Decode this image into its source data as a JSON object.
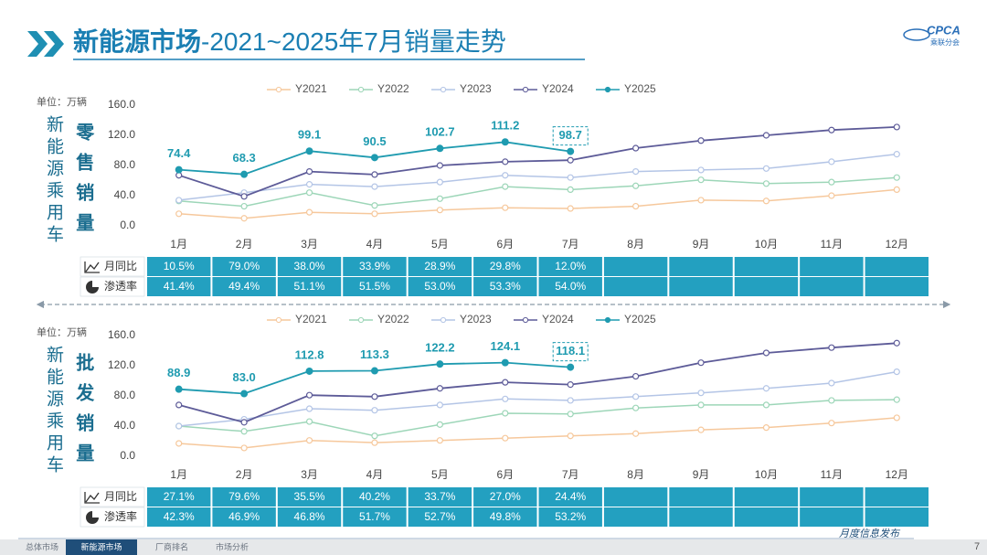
{
  "header": {
    "title_main": "新能源市场",
    "title_rest": "-2021~2025年7月销量走势",
    "logo": "CPCA",
    "logo_sub": "乘联分会"
  },
  "chart_data": [
    {
      "type": "line",
      "unit": "单位：万辆",
      "side_label": "新能源乘用车",
      "metric_label": "零售销量",
      "categories": [
        "1月",
        "2月",
        "3月",
        "4月",
        "5月",
        "6月",
        "7月",
        "8月",
        "9月",
        "10月",
        "11月",
        "12月"
      ],
      "ylim": [
        0,
        160
      ],
      "yticks": [
        {
          "value": 0,
          "label": "0.0"
        },
        {
          "value": 40,
          "label": "40.0"
        },
        {
          "value": 80,
          "label": "80.0"
        },
        {
          "value": 120,
          "label": "120.0"
        },
        {
          "value": 160,
          "label": "160.0"
        }
      ],
      "grid": false,
      "series": [
        {
          "name": "Y2021",
          "color": "#f6c89c",
          "values": [
            16,
            10,
            18,
            16,
            21,
            24,
            23,
            26,
            34,
            33,
            40,
            48
          ]
        },
        {
          "name": "Y2022",
          "color": "#9dd6b8",
          "values": [
            33,
            26,
            44,
            27,
            36,
            52,
            48,
            53,
            61,
            56,
            58,
            64
          ]
        },
        {
          "name": "Y2023",
          "color": "#b4c5e6",
          "values": [
            34,
            44,
            55,
            52,
            58,
            67,
            64,
            72,
            74,
            76,
            85,
            95
          ]
        },
        {
          "name": "Y2024",
          "color": "#5d5b98",
          "values": [
            67,
            39,
            72,
            68,
            80,
            85,
            87,
            103,
            113,
            120,
            127,
            131
          ]
        },
        {
          "name": "Y2025",
          "color": "#1f9bb0",
          "values": [
            74.4,
            68.3,
            99.1,
            90.5,
            102.7,
            111.2,
            98.7,
            null,
            null,
            null,
            null,
            null
          ],
          "value_labels": [
            "74.4",
            "68.3",
            "99.1",
            "90.5",
            "102.7",
            "111.2",
            "98.7",
            null,
            null,
            null,
            null,
            null
          ]
        }
      ],
      "table": {
        "rows": [
          {
            "label": "月同比",
            "values": [
              "10.5%",
              "79.0%",
              "38.0%",
              "33.9%",
              "28.9%",
              "29.8%",
              "12.0%"
            ]
          },
          {
            "label": "渗透率",
            "values": [
              "41.4%",
              "49.4%",
              "51.1%",
              "51.5%",
              "53.0%",
              "53.3%",
              "54.0%"
            ]
          }
        ]
      }
    },
    {
      "type": "line",
      "unit": "单位：万辆",
      "side_label": "新能源乘用车",
      "metric_label": "批发销量",
      "categories": [
        "1月",
        "2月",
        "3月",
        "4月",
        "5月",
        "6月",
        "7月",
        "8月",
        "9月",
        "10月",
        "11月",
        "12月"
      ],
      "ylim": [
        0,
        160
      ],
      "yticks": [
        {
          "value": 0,
          "label": "0.0"
        },
        {
          "value": 40,
          "label": "40.0"
        },
        {
          "value": 80,
          "label": "80.0"
        },
        {
          "value": 120,
          "label": "120.0"
        },
        {
          "value": 160,
          "label": "160.0"
        }
      ],
      "grid": false,
      "series": [
        {
          "name": "Y2021",
          "color": "#f6c89c",
          "values": [
            17,
            11,
            21,
            18,
            21,
            24,
            27,
            30,
            35,
            38,
            44,
            51
          ]
        },
        {
          "name": "Y2022",
          "color": "#9dd6b8",
          "values": [
            40,
            33,
            46,
            27,
            42,
            57,
            56,
            64,
            68,
            68,
            74,
            75
          ]
        },
        {
          "name": "Y2023",
          "color": "#b4c5e6",
          "values": [
            40,
            49,
            63,
            61,
            68,
            76,
            74,
            79,
            84,
            90,
            97,
            112
          ]
        },
        {
          "name": "Y2024",
          "color": "#5d5b98",
          "values": [
            68,
            45,
            81,
            79,
            90,
            98,
            95,
            106,
            124,
            137,
            144,
            150
          ]
        },
        {
          "name": "Y2025",
          "color": "#1f9bb0",
          "values": [
            88.9,
            83.0,
            112.8,
            113.3,
            122.2,
            124.1,
            118.1,
            null,
            null,
            null,
            null,
            null
          ],
          "value_labels": [
            "88.9",
            "83.0",
            "112.8",
            "113.3",
            "122.2",
            "124.1",
            "118.1",
            null,
            null,
            null,
            null,
            null
          ]
        }
      ],
      "table": {
        "rows": [
          {
            "label": "月同比",
            "values": [
              "27.1%",
              "79.6%",
              "35.5%",
              "40.2%",
              "33.7%",
              "27.0%",
              "24.4%"
            ]
          },
          {
            "label": "渗透率",
            "values": [
              "42.3%",
              "46.9%",
              "46.8%",
              "51.7%",
              "52.7%",
              "49.8%",
              "53.2%"
            ]
          }
        ]
      }
    }
  ],
  "footer": {
    "tabs": [
      {
        "label": "总体市场",
        "active": false
      },
      {
        "label": "新能源市场",
        "active": true
      },
      {
        "label": "厂商排名",
        "active": false
      },
      {
        "label": "市场分析",
        "active": false
      }
    ],
    "publish": "月度信息发布",
    "page": "7"
  }
}
